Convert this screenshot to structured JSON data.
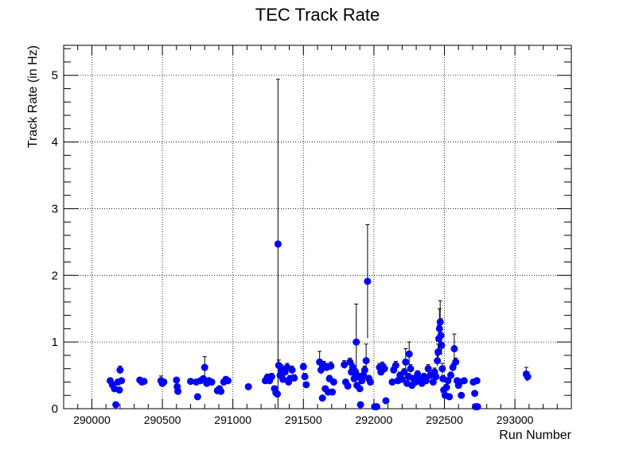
{
  "colors": {
    "point": "#0000ff",
    "error_bar": "#000000",
    "grid": "#000000",
    "background": "#ffffff"
  },
  "chart_data": {
    "type": "scatter",
    "title": "TEC Track Rate",
    "xlabel": "Run Number",
    "ylabel": "Track Rate (in Hz)",
    "xlim": [
      289800,
      293400
    ],
    "ylim": [
      0,
      5.45
    ],
    "x_major_ticks": [
      290000,
      290500,
      291000,
      291500,
      292000,
      292500,
      293000
    ],
    "x_tick_labels": [
      "290000",
      "290500",
      "291000",
      "291500",
      "292000",
      "292500",
      "293000"
    ],
    "y_major_ticks": [
      0,
      1,
      2,
      3,
      4,
      5
    ],
    "y_tick_labels": [
      "0",
      "1",
      "2",
      "3",
      "4",
      "5"
    ],
    "grid": true,
    "series": [
      {
        "name": "TEC track rate",
        "points": [
          {
            "x": 290130,
            "y": 0.42,
            "err": 0.03
          },
          {
            "x": 290145,
            "y": 0.36,
            "err": 0.03
          },
          {
            "x": 290160,
            "y": 0.3,
            "err": 0.03
          },
          {
            "x": 290170,
            "y": 0.06,
            "err": 0.02
          },
          {
            "x": 290185,
            "y": 0.4,
            "err": 0.04
          },
          {
            "x": 290195,
            "y": 0.28,
            "err": 0.03
          },
          {
            "x": 290200,
            "y": 0.58,
            "err": 0.06
          },
          {
            "x": 290210,
            "y": 0.42,
            "err": 0.04
          },
          {
            "x": 290340,
            "y": 0.43,
            "err": 0.03
          },
          {
            "x": 290355,
            "y": 0.4,
            "err": 0.03
          },
          {
            "x": 290370,
            "y": 0.41,
            "err": 0.03
          },
          {
            "x": 290490,
            "y": 0.42,
            "err": 0.07
          },
          {
            "x": 290500,
            "y": 0.38,
            "err": 0.05
          },
          {
            "x": 290510,
            "y": 0.4,
            "err": 0.04
          },
          {
            "x": 290600,
            "y": 0.43,
            "err": 0.03
          },
          {
            "x": 290605,
            "y": 0.33,
            "err": 0.03
          },
          {
            "x": 290610,
            "y": 0.26,
            "err": 0.03
          },
          {
            "x": 290700,
            "y": 0.41,
            "err": 0.03
          },
          {
            "x": 290740,
            "y": 0.4,
            "err": 0.03
          },
          {
            "x": 290750,
            "y": 0.18,
            "err": 0.03
          },
          {
            "x": 290770,
            "y": 0.42,
            "err": 0.04
          },
          {
            "x": 290790,
            "y": 0.45,
            "err": 0.04
          },
          {
            "x": 290800,
            "y": 0.62,
            "err": 0.16
          },
          {
            "x": 290815,
            "y": 0.38,
            "err": 0.04
          },
          {
            "x": 290830,
            "y": 0.42,
            "err": 0.04
          },
          {
            "x": 290850,
            "y": 0.4,
            "err": 0.03
          },
          {
            "x": 290890,
            "y": 0.27,
            "err": 0.03
          },
          {
            "x": 290905,
            "y": 0.3,
            "err": 0.03
          },
          {
            "x": 290915,
            "y": 0.26,
            "err": 0.03
          },
          {
            "x": 290935,
            "y": 0.4,
            "err": 0.03
          },
          {
            "x": 290950,
            "y": 0.44,
            "err": 0.03
          },
          {
            "x": 290965,
            "y": 0.42,
            "err": 0.03
          },
          {
            "x": 291110,
            "y": 0.33,
            "err": 0.03
          },
          {
            "x": 291230,
            "y": 0.42,
            "err": 0.04
          },
          {
            "x": 291245,
            "y": 0.47,
            "err": 0.05
          },
          {
            "x": 291260,
            "y": 0.42,
            "err": 0.04
          },
          {
            "x": 291275,
            "y": 0.48,
            "err": 0.05
          },
          {
            "x": 291295,
            "y": 0.3,
            "err": 0.04
          },
          {
            "x": 291305,
            "y": 0.24,
            "err": 0.03
          },
          {
            "x": 291315,
            "y": 0.22,
            "err": 0.03
          },
          {
            "x": 291320,
            "y": 2.47,
            "err": 2.47
          },
          {
            "x": 291325,
            "y": 0.65,
            "err": 0.08
          },
          {
            "x": 291335,
            "y": 0.5,
            "err": 0.06
          },
          {
            "x": 291345,
            "y": 0.6,
            "err": 0.06
          },
          {
            "x": 291355,
            "y": 0.44,
            "err": 0.05
          },
          {
            "x": 291370,
            "y": 0.55,
            "err": 0.05
          },
          {
            "x": 291385,
            "y": 0.62,
            "err": 0.06
          },
          {
            "x": 291395,
            "y": 0.4,
            "err": 0.04
          },
          {
            "x": 291405,
            "y": 0.45,
            "err": 0.05
          },
          {
            "x": 291420,
            "y": 0.58,
            "err": 0.06
          },
          {
            "x": 291435,
            "y": 0.46,
            "err": 0.05
          },
          {
            "x": 291500,
            "y": 0.63,
            "err": 0.05
          },
          {
            "x": 291510,
            "y": 0.48,
            "err": 0.05
          },
          {
            "x": 291520,
            "y": 0.36,
            "err": 0.04
          },
          {
            "x": 291615,
            "y": 0.7,
            "err": 0.16
          },
          {
            "x": 291625,
            "y": 0.58,
            "err": 0.06
          },
          {
            "x": 291635,
            "y": 0.16,
            "err": 0.03
          },
          {
            "x": 291645,
            "y": 0.65,
            "err": 0.06
          },
          {
            "x": 291655,
            "y": 0.3,
            "err": 0.04
          },
          {
            "x": 291665,
            "y": 0.62,
            "err": 0.06
          },
          {
            "x": 291675,
            "y": 0.25,
            "err": 0.03
          },
          {
            "x": 291685,
            "y": 0.45,
            "err": 0.05
          },
          {
            "x": 291695,
            "y": 0.64,
            "err": 0.06
          },
          {
            "x": 291705,
            "y": 0.25,
            "err": 0.03
          },
          {
            "x": 291715,
            "y": 0.4,
            "err": 0.04
          },
          {
            "x": 291790,
            "y": 0.66,
            "err": 0.06
          },
          {
            "x": 291800,
            "y": 0.4,
            "err": 0.04
          },
          {
            "x": 291815,
            "y": 0.34,
            "err": 0.04
          },
          {
            "x": 291830,
            "y": 0.7,
            "err": 0.06
          },
          {
            "x": 291840,
            "y": 0.55,
            "err": 0.05
          },
          {
            "x": 291850,
            "y": 0.62,
            "err": 0.06
          },
          {
            "x": 291860,
            "y": 0.45,
            "err": 0.05
          },
          {
            "x": 291870,
            "y": 0.55,
            "err": 0.05
          },
          {
            "x": 291875,
            "y": 1.0,
            "err": 0.57
          },
          {
            "x": 291880,
            "y": 0.35,
            "err": 0.04
          },
          {
            "x": 291890,
            "y": 0.48,
            "err": 0.05
          },
          {
            "x": 291900,
            "y": 0.3,
            "err": 0.04
          },
          {
            "x": 291905,
            "y": 0.06,
            "err": 0.02
          },
          {
            "x": 291915,
            "y": 0.42,
            "err": 0.05
          },
          {
            "x": 291925,
            "y": 0.5,
            "err": 0.05
          },
          {
            "x": 291935,
            "y": 0.58,
            "err": 0.06
          },
          {
            "x": 291945,
            "y": 0.72,
            "err": 0.25
          },
          {
            "x": 291955,
            "y": 1.91,
            "err": 0.85
          },
          {
            "x": 291965,
            "y": 0.45,
            "err": 0.05
          },
          {
            "x": 291975,
            "y": 0.4,
            "err": 0.04
          },
          {
            "x": 292005,
            "y": 0.03,
            "err": 0.02
          },
          {
            "x": 292020,
            "y": 0.03,
            "err": 0.02
          },
          {
            "x": 292040,
            "y": 0.62,
            "err": 0.06
          },
          {
            "x": 292050,
            "y": 0.55,
            "err": 0.05
          },
          {
            "x": 292060,
            "y": 0.64,
            "err": 0.06
          },
          {
            "x": 292075,
            "y": 0.6,
            "err": 0.06
          },
          {
            "x": 292085,
            "y": 0.12,
            "err": 0.03
          },
          {
            "x": 292130,
            "y": 0.4,
            "err": 0.04
          },
          {
            "x": 292140,
            "y": 0.58,
            "err": 0.05
          },
          {
            "x": 292155,
            "y": 0.65,
            "err": 0.06
          },
          {
            "x": 292170,
            "y": 0.42,
            "err": 0.04
          },
          {
            "x": 292185,
            "y": 0.5,
            "err": 0.05
          },
          {
            "x": 292200,
            "y": 0.44,
            "err": 0.04
          },
          {
            "x": 292215,
            "y": 0.55,
            "err": 0.05
          },
          {
            "x": 292225,
            "y": 0.7,
            "err": 0.2
          },
          {
            "x": 292235,
            "y": 0.38,
            "err": 0.04
          },
          {
            "x": 292245,
            "y": 0.48,
            "err": 0.05
          },
          {
            "x": 292250,
            "y": 0.82,
            "err": 0.18
          },
          {
            "x": 292260,
            "y": 0.6,
            "err": 0.06
          },
          {
            "x": 292270,
            "y": 0.35,
            "err": 0.04
          },
          {
            "x": 292280,
            "y": 0.45,
            "err": 0.05
          },
          {
            "x": 292295,
            "y": 0.4,
            "err": 0.04
          },
          {
            "x": 292310,
            "y": 0.52,
            "err": 0.05
          },
          {
            "x": 292325,
            "y": 0.44,
            "err": 0.04
          },
          {
            "x": 292340,
            "y": 0.38,
            "err": 0.04
          },
          {
            "x": 292355,
            "y": 0.48,
            "err": 0.05
          },
          {
            "x": 292370,
            "y": 0.42,
            "err": 0.04
          },
          {
            "x": 292385,
            "y": 0.6,
            "err": 0.06
          },
          {
            "x": 292400,
            "y": 0.5,
            "err": 0.05
          },
          {
            "x": 292420,
            "y": 0.4,
            "err": 0.04
          },
          {
            "x": 292430,
            "y": 0.55,
            "err": 0.06
          },
          {
            "x": 292440,
            "y": 0.48,
            "err": 0.05
          },
          {
            "x": 292450,
            "y": 0.72,
            "err": 0.08
          },
          {
            "x": 292455,
            "y": 0.85,
            "err": 0.12
          },
          {
            "x": 292460,
            "y": 1.05,
            "err": 0.2
          },
          {
            "x": 292465,
            "y": 1.2,
            "err": 0.3
          },
          {
            "x": 292470,
            "y": 1.3,
            "err": 0.32
          },
          {
            "x": 292475,
            "y": 1.1,
            "err": 0.25
          },
          {
            "x": 292480,
            "y": 0.95,
            "err": 0.15
          },
          {
            "x": 292485,
            "y": 0.6,
            "err": 0.08
          },
          {
            "x": 292490,
            "y": 0.45,
            "err": 0.05
          },
          {
            "x": 292495,
            "y": 0.28,
            "err": 0.04
          },
          {
            "x": 292505,
            "y": 0.2,
            "err": 0.03
          },
          {
            "x": 292515,
            "y": 0.32,
            "err": 0.04
          },
          {
            "x": 292525,
            "y": 0.42,
            "err": 0.04
          },
          {
            "x": 292535,
            "y": 0.18,
            "err": 0.03
          },
          {
            "x": 292545,
            "y": 0.5,
            "err": 0.05
          },
          {
            "x": 292560,
            "y": 0.62,
            "err": 0.06
          },
          {
            "x": 292570,
            "y": 0.9,
            "err": 0.22
          },
          {
            "x": 292580,
            "y": 0.7,
            "err": 0.06
          },
          {
            "x": 292590,
            "y": 0.42,
            "err": 0.04
          },
          {
            "x": 292600,
            "y": 0.35,
            "err": 0.04
          },
          {
            "x": 292610,
            "y": 0.4,
            "err": 0.04
          },
          {
            "x": 292620,
            "y": 0.2,
            "err": 0.03
          },
          {
            "x": 292640,
            "y": 0.42,
            "err": 0.04
          },
          {
            "x": 292705,
            "y": 0.4,
            "err": 0.04
          },
          {
            "x": 292715,
            "y": 0.23,
            "err": 0.03
          },
          {
            "x": 292720,
            "y": 0.03,
            "err": 0.02
          },
          {
            "x": 292730,
            "y": 0.42,
            "err": 0.04
          },
          {
            "x": 292735,
            "y": 0.03,
            "err": 0.02
          },
          {
            "x": 293080,
            "y": 0.52,
            "err": 0.1
          },
          {
            "x": 293090,
            "y": 0.48,
            "err": 0.07
          }
        ]
      }
    ]
  }
}
